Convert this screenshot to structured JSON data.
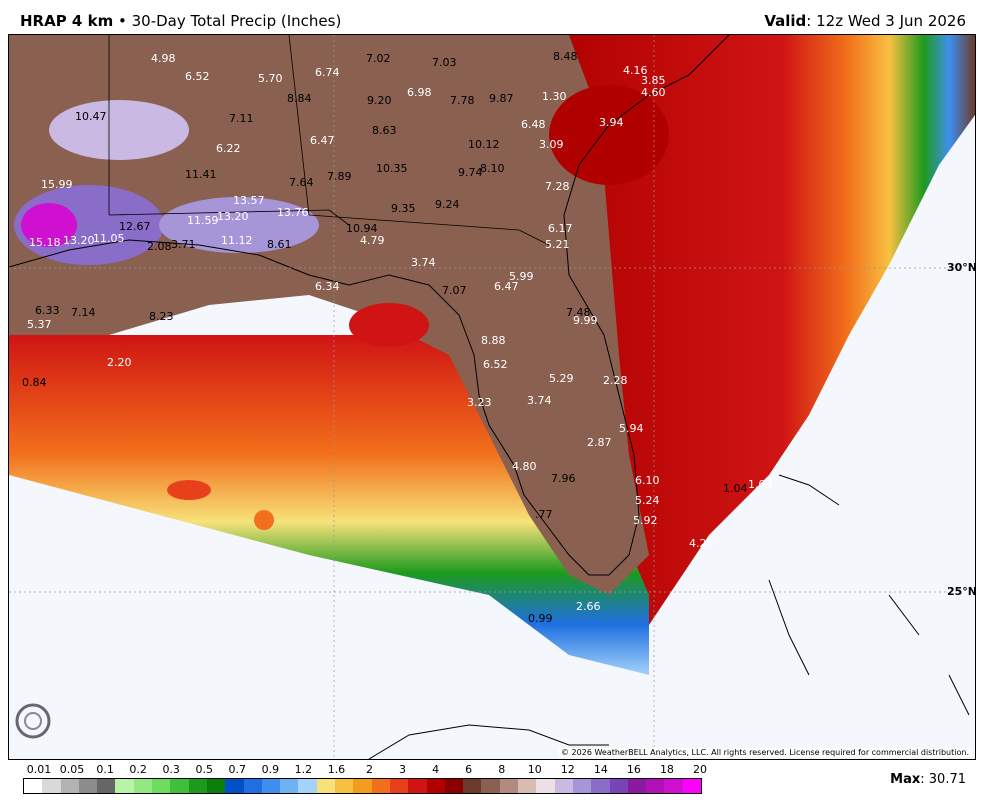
{
  "header": {
    "model": "HRAP 4 km",
    "bullet": "•",
    "product": "30-Day Total Precip (Inches)",
    "valid_label": "Valid",
    "valid_value": ": 12z Wed 3 Jun 2026"
  },
  "map": {
    "lat_labels": [
      "30°N",
      "25°N"
    ],
    "copyright": "© 2026 WeatherBELL Analytics, LLC. All rights reserved. License required for commercial distribution.",
    "logo_text": "WEATHERBELL",
    "values": [
      {
        "t": "4.98",
        "w": true
      },
      {
        "t": "6.52",
        "w": true
      },
      {
        "t": "5.70",
        "w": true
      },
      {
        "t": "6.74",
        "w": true
      },
      {
        "t": "7.02",
        "w": false
      },
      {
        "t": "7.03",
        "w": false
      },
      {
        "t": "8.48",
        "w": false
      },
      {
        "t": "4.16",
        "w": true
      },
      {
        "t": "3.85",
        "w": true
      },
      {
        "t": "8.84",
        "w": false
      },
      {
        "t": "9.20",
        "w": false
      },
      {
        "t": "6.98",
        "w": true
      },
      {
        "t": "7.78",
        "w": false
      },
      {
        "t": "9.87",
        "w": false
      },
      {
        "t": "4.60",
        "w": true
      },
      {
        "t": "1.30",
        "w": true
      },
      {
        "t": "10.47",
        "w": false
      },
      {
        "t": "7.11",
        "w": false
      },
      {
        "t": "8.63",
        "w": false
      },
      {
        "t": "6.48",
        "w": true
      },
      {
        "t": "3.94",
        "w": true
      },
      {
        "t": "6.22",
        "w": true
      },
      {
        "t": "6.47",
        "w": true
      },
      {
        "t": "10.12",
        "w": false
      },
      {
        "t": "3.09",
        "w": true
      },
      {
        "t": "10.35",
        "w": false
      },
      {
        "t": "9.74",
        "w": false
      },
      {
        "t": "8.10",
        "w": false
      },
      {
        "t": "11.41",
        "w": false
      },
      {
        "t": "7.64",
        "w": false
      },
      {
        "t": "7.89",
        "w": false
      },
      {
        "t": "7.28",
        "w": true
      },
      {
        "t": "15.99",
        "w": true
      },
      {
        "t": "13.57",
        "w": true
      },
      {
        "t": "13.76",
        "w": true
      },
      {
        "t": "9.35",
        "w": false
      },
      {
        "t": "9.24",
        "w": false
      },
      {
        "t": "11.59",
        "w": true
      },
      {
        "t": "13.20",
        "w": true
      },
      {
        "t": "12.67",
        "w": false
      },
      {
        "t": "10.94",
        "w": false
      },
      {
        "t": "6.17",
        "w": true
      },
      {
        "t": "15.18",
        "w": true
      },
      {
        "t": "13.20",
        "w": true
      },
      {
        "t": "11.05",
        "w": true
      },
      {
        "t": "2.08",
        "w": false
      },
      {
        "t": "3.71",
        "w": false
      },
      {
        "t": "11.12",
        "w": true
      },
      {
        "t": "8.61",
        "w": false
      },
      {
        "t": "4.79",
        "w": true
      },
      {
        "t": "5.21",
        "w": true
      },
      {
        "t": "3.74",
        "w": true
      },
      {
        "t": "5.99",
        "w": true
      },
      {
        "t": "6.34",
        "w": true
      },
      {
        "t": "7.07",
        "w": false
      },
      {
        "t": "6.47",
        "w": true
      },
      {
        "t": "6.33",
        "w": false
      },
      {
        "t": "7.14",
        "w": false
      },
      {
        "t": "8.23",
        "w": false
      },
      {
        "t": "7.48",
        "w": false
      },
      {
        "t": "9.99",
        "w": true
      },
      {
        "t": "5.37",
        "w": true
      },
      {
        "t": "8.88",
        "w": true
      },
      {
        "t": "2.20",
        "w": true
      },
      {
        "t": "6.52",
        "w": true
      },
      {
        "t": "5.29",
        "w": true
      },
      {
        "t": "2.28",
        "w": true
      },
      {
        "t": "0.84",
        "w": false
      },
      {
        "t": "3.23",
        "w": true
      },
      {
        "t": "3.74",
        "w": true
      },
      {
        "t": "5.94",
        "w": true
      },
      {
        "t": "2.87",
        "w": true
      },
      {
        "t": "4.80",
        "w": true
      },
      {
        "t": "7.96",
        "w": false
      },
      {
        "t": "6.10",
        "w": true
      },
      {
        "t": "1.04",
        "w": false
      },
      {
        "t": "1.03",
        "w": true
      },
      {
        "t": "5.24",
        "w": true
      },
      {
        "t": ".77",
        "w": false
      },
      {
        "t": "5.92",
        "w": true
      },
      {
        "t": "4.27",
        "w": true
      },
      {
        "t": "2.66",
        "w": true
      },
      {
        "t": "0.99",
        "w": false
      }
    ]
  },
  "legend": {
    "ticks": [
      "0.01",
      "0.05",
      "0.1",
      "0.2",
      "0.3",
      "0.5",
      "0.7",
      "0.9",
      "1.2",
      "1.6",
      "2",
      "3",
      "4",
      "6",
      "8",
      "10",
      "12",
      "14",
      "16",
      "18",
      "20"
    ],
    "colors": [
      "#ffffff",
      "#d9d9d9",
      "#b3b3b3",
      "#8c8c8c",
      "#666666",
      "#b7f4a5",
      "#93e884",
      "#6ddc5f",
      "#3fbf3a",
      "#1d9a1d",
      "#0b7d0b",
      "#0050c8",
      "#1f6fe0",
      "#3f8ff0",
      "#6eb2f5",
      "#a3d2fa",
      "#f7e27a",
      "#f7c041",
      "#f59b1e",
      "#f2701b",
      "#e8401a",
      "#d01414",
      "#b00000",
      "#8a0000",
      "#6b3a2a",
      "#8a6050",
      "#b08a80",
      "#d8bcb4",
      "#ece0e6",
      "#c9b9e3",
      "#a696d8",
      "#8a6cc9",
      "#7a44b8",
      "#8c1a9c",
      "#b012b8",
      "#d010d0",
      "#ff00ff"
    ],
    "max_label": "Max",
    "max_value": ": 30.71"
  }
}
